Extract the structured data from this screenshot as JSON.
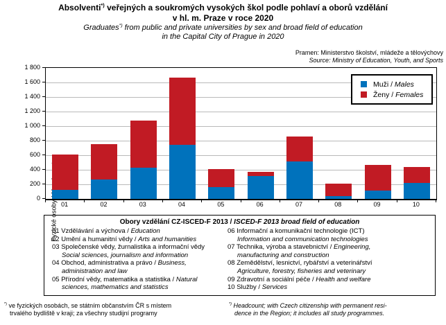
{
  "header": {
    "title_marker": "*)",
    "title_line1_pre": "Absolventi",
    "title_line1_post": " veřejných a soukromých vysokých škol podle pohlaví a oborů vzdělání",
    "title_line2": "v hl. m. Praze v roce 2020",
    "subtitle_marker": "*)",
    "subtitle_line1_pre": "Graduates",
    "subtitle_line1_post": " from public and private universities by sex and broad field of education",
    "subtitle_line2": "in the Capital City of Prague in 2020",
    "source_cz": "Pramen: Ministerstvo školství, mládeže a tělovýchovy",
    "source_en": "Source: Ministry of Education, Youth, and Sports"
  },
  "chart_data": {
    "type": "bar",
    "stacked": true,
    "categories": [
      "01",
      "02",
      "03",
      "04",
      "05",
      "06",
      "07",
      "08",
      "09",
      "10"
    ],
    "series": [
      {
        "name": "Muži / Males",
        "color": "#0072BC",
        "values": [
          125,
          265,
          430,
          740,
          160,
          310,
          510,
          40,
          110,
          220
        ]
      },
      {
        "name": "Ženy / Females",
        "color": "#C11B24",
        "values": [
          480,
          485,
          650,
          930,
          250,
          65,
          345,
          170,
          360,
          220
        ]
      }
    ],
    "ylabel_cz": "Fyzické osoby / ",
    "ylabel_en": "Headcount",
    "ylim": [
      0,
      1800
    ],
    "grid": true,
    "gridline_color": "#b9b9b9",
    "legend_position": "top-right",
    "yticks": [
      {
        "v": 0,
        "label": "0"
      },
      {
        "v": 200,
        "label": "200"
      },
      {
        "v": 400,
        "label": "400"
      },
      {
        "v": 600,
        "label": "600"
      },
      {
        "v": 800,
        "label": "800"
      },
      {
        "v": 1000,
        "label": "1 000"
      },
      {
        "v": 1200,
        "label": "1 200"
      },
      {
        "v": 1400,
        "label": "1 400"
      },
      {
        "v": 1600,
        "label": "1 600"
      },
      {
        "v": 1800,
        "label": "1 800"
      }
    ],
    "legend": [
      {
        "cz": "Muži / ",
        "en": "Males",
        "color": "#0072BC"
      },
      {
        "cz": "Ženy / ",
        "en": "Females",
        "color": "#C11B24"
      }
    ]
  },
  "fields_box": {
    "heading_cz": "Obory vzdělání CZ-ISCED-F 2013 / ",
    "heading_en": "ISCED-F 2013 broad field of education",
    "left": [
      {
        "code": "01",
        "lines": [
          [
            {
              "t": "Vzdělávání a výchova / ",
              "i": false
            },
            {
              "t": "Education",
              "i": true
            }
          ]
        ]
      },
      {
        "code": "02",
        "lines": [
          [
            {
              "t": "Umění a humanitní vědy / ",
              "i": false
            },
            {
              "t": "Arts and humanities",
              "i": true
            }
          ]
        ]
      },
      {
        "code": "03",
        "lines": [
          [
            {
              "t": "Společenské vědy, žurnalistika a informační vědy",
              "i": false
            }
          ],
          [
            {
              "t": "Social sciences, journalism and information",
              "i": true
            }
          ]
        ]
      },
      {
        "code": "04",
        "lines": [
          [
            {
              "t": "Obchod, administrativa a právo / ",
              "i": false
            },
            {
              "t": "Business,",
              "i": true
            }
          ],
          [
            {
              "t": "administration and law",
              "i": true
            }
          ]
        ]
      },
      {
        "code": "05",
        "lines": [
          [
            {
              "t": "Přírodní vědy, matematika a statistika / ",
              "i": false
            },
            {
              "t": "Natural",
              "i": true
            }
          ],
          [
            {
              "t": "sciences, mathematics and statistics",
              "i": true
            }
          ]
        ]
      }
    ],
    "right": [
      {
        "code": "06",
        "lines": [
          [
            {
              "t": "Informační a komunikační technologie (ICT)",
              "i": false
            }
          ],
          [
            {
              "t": "Information and communication technologies",
              "i": true
            }
          ]
        ]
      },
      {
        "code": "07",
        "lines": [
          [
            {
              "t": "Technika, výroba a stavebnictví / ",
              "i": false
            },
            {
              "t": "Engineering,",
              "i": true
            }
          ],
          [
            {
              "t": "manufacturing and construction",
              "i": true
            }
          ]
        ]
      },
      {
        "code": "08",
        "lines": [
          [
            {
              "t": "Zemědělství, lesnictví, rybářství a veterinářství",
              "i": false
            }
          ],
          [
            {
              "t": "Agriculture, forestry, fisheries and veterinary",
              "i": true
            }
          ]
        ]
      },
      {
        "code": "09",
        "lines": [
          [
            {
              "t": "Zdravotní a sociální péče / ",
              "i": false
            },
            {
              "t": "Health and welfare",
              "i": true
            }
          ]
        ]
      },
      {
        "code": "10",
        "lines": [
          [
            {
              "t": "Služby / ",
              "i": false
            },
            {
              "t": "Services",
              "i": true
            }
          ]
        ]
      }
    ]
  },
  "footnotes": {
    "left": {
      "marker": "*)",
      "lines": [
        "ve fyzických osobách, se státním občanstvím ČR s místem",
        "trvalého bydliště v kraji; za všechny studijní programy"
      ]
    },
    "right": {
      "marker": "*)",
      "lines": [
        "Headcount; with Czech citizenship with permanent resi-",
        "dence in the Region; it includes all study programmes."
      ]
    }
  }
}
